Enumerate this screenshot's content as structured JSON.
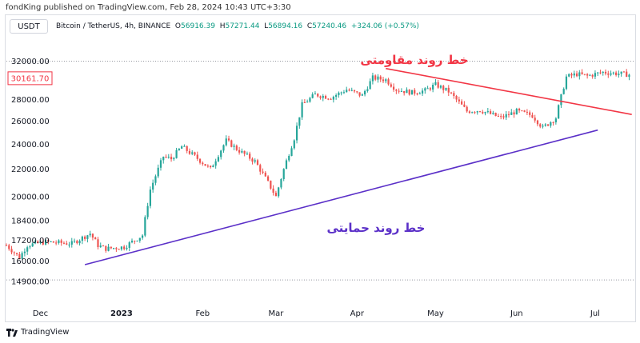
{
  "header": {
    "publish_line": "fondKing published on TradingView.com, Feb 28, 2024 10:43 UTC+3:30"
  },
  "toolbar": {
    "currency_button": "USDT"
  },
  "legend": {
    "symbol": "Bitcoin / TetherUS, 4h, BINANCE",
    "open_label": "O",
    "open": "56916.39",
    "high_label": "H",
    "high": "57271.44",
    "low_label": "L",
    "low": "56894.16",
    "close_label": "C",
    "close": "57240.46",
    "change": "+324.06 (+0.57%)"
  },
  "footer": {
    "brand": "TradingView"
  },
  "colors": {
    "up": "#26a69a",
    "down": "#ef5350",
    "resistance": "#f23645",
    "support": "#5b30c8",
    "price_tag": "#f23645"
  },
  "chart_data": {
    "type": "candlestick",
    "y_ticks": [
      32000,
      28000,
      26000,
      24000,
      22000,
      20000,
      18400,
      17200,
      16000,
      14900
    ],
    "y_tick_labels": [
      "32000.00",
      "28000.00",
      "26000.00",
      "24000.00",
      "22000.00",
      "20000.00",
      "18400.00",
      "17200.00",
      "16000.00",
      "14900.00"
    ],
    "ylim": [
      14500,
      33500
    ],
    "y_scale": "log",
    "current_price": "30161.70",
    "x_labels": [
      "Dec",
      "2023",
      "Feb",
      "Mar",
      "Apr",
      "May",
      "Jun",
      "Jul"
    ],
    "x_label_days": [
      13,
      44,
      75,
      103,
      134,
      164,
      195,
      225
    ],
    "xlim": [
      0,
      240
    ],
    "price_path_days": [
      0,
      5,
      8,
      15,
      25,
      32,
      35,
      38,
      45,
      52,
      55,
      60,
      63,
      67,
      72,
      78,
      84,
      88,
      95,
      100,
      103,
      106,
      110,
      113,
      118,
      124,
      130,
      136,
      140,
      145,
      149,
      155,
      160,
      164,
      169,
      176,
      181,
      189,
      195,
      201,
      205,
      210,
      214,
      218,
      222,
      228,
      240
    ],
    "price_path": [
      16900,
      16200,
      16900,
      17100,
      17000,
      17600,
      16900,
      16700,
      16800,
      17500,
      20500,
      23000,
      22800,
      23800,
      23000,
      22000,
      24300,
      23600,
      22600,
      21000,
      20000,
      22000,
      24500,
      27500,
      28500,
      28200,
      29000,
      28400,
      30200,
      30000,
      29000,
      28700,
      28900,
      29500,
      28800,
      26900,
      27000,
      26300,
      26900,
      26500,
      25400,
      26300,
      30300,
      30600,
      30400,
      30800,
      30500
    ],
    "trendlines": [
      {
        "name": "resistance",
        "label": "خط روند مقاومتی",
        "from_day": 145,
        "from_price": 31200,
        "to_day": 239,
        "to_price": 26600
      },
      {
        "name": "support",
        "label": "خط روند حمایتی",
        "from_day": 30,
        "from_price": 15800,
        "to_day": 226,
        "to_price": 25200
      }
    ],
    "grid": false,
    "legend_position": "top-left"
  }
}
